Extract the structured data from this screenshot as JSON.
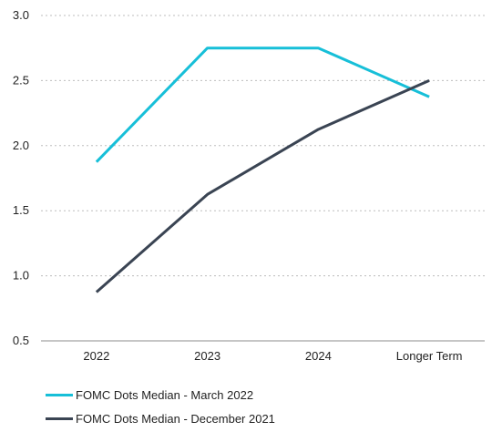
{
  "chart_data": {
    "type": "line",
    "categories": [
      "2022",
      "2023",
      "2024",
      "Longer Term"
    ],
    "ylim": [
      0.5,
      3.0
    ],
    "yticks": [
      "3.0",
      "2.5",
      "2.0",
      "1.5",
      "1.0",
      "0.5"
    ],
    "grid": "horizontal dotted",
    "legend_position": "bottom-left",
    "series": [
      {
        "name": "FOMC Dots Median - March 2022",
        "color": "#17bfd8",
        "values": [
          1.875,
          2.75,
          2.75,
          2.375
        ]
      },
      {
        "name": "FOMC Dots Median - December 2021",
        "color": "#3a4453",
        "values": [
          0.875,
          1.625,
          2.125,
          2.5
        ]
      }
    ]
  }
}
